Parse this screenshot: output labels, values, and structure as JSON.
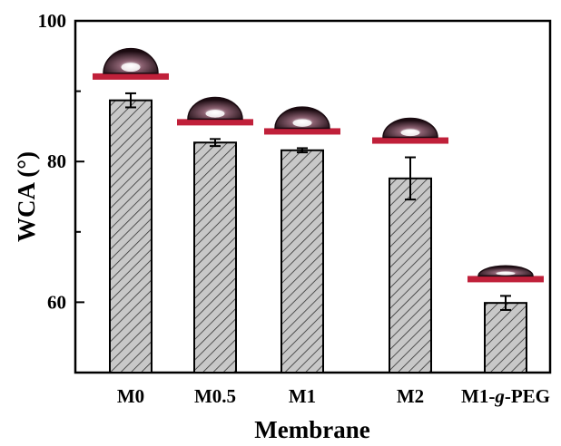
{
  "chart_data": {
    "type": "bar",
    "xlabel": "Membrane",
    "ylabel": "WCA (°)",
    "categories": [
      "M0",
      "M0.5",
      "M1",
      "M2",
      "M1-g-PEG"
    ],
    "category_parts": [
      [
        "M0"
      ],
      [
        "M0.5"
      ],
      [
        "M1"
      ],
      [
        "M2"
      ],
      [
        "M1-",
        "g",
        "-PEG"
      ]
    ],
    "values": [
      88.7,
      82.7,
      81.6,
      77.6,
      59.9
    ],
    "errors": [
      1.0,
      0.5,
      0.3,
      3.0,
      1.0
    ],
    "ylim": [
      50,
      100
    ],
    "yticks": [
      60,
      80,
      100
    ],
    "grid": false,
    "droplet_insets": true,
    "colors": {
      "bar_fill": "#c8c8c8",
      "hatch": "#333333",
      "substrate": "#c0203a",
      "droplet": "#1a0a10"
    }
  }
}
